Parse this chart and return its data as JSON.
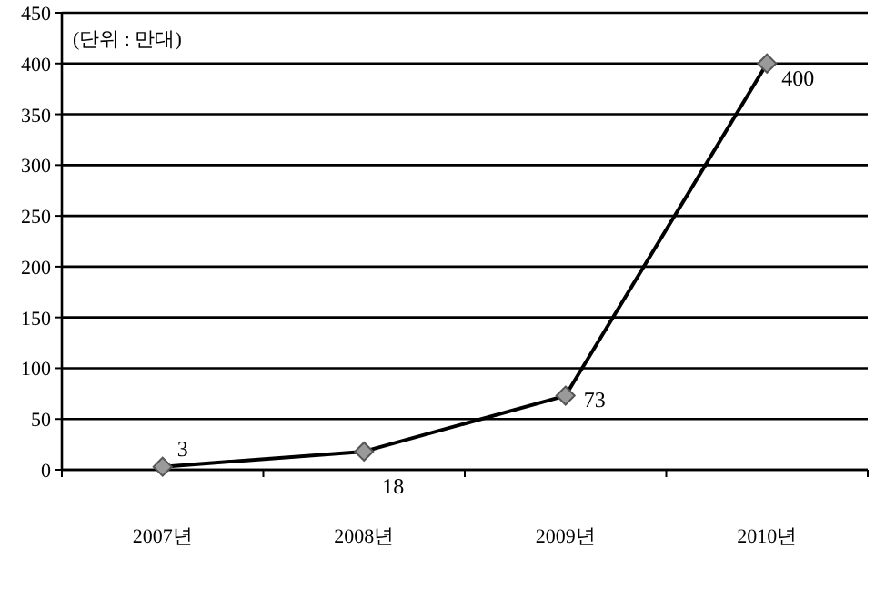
{
  "chart_data": {
    "type": "line",
    "categories": [
      "2007년",
      "2008년",
      "2009년",
      "2010년"
    ],
    "values": [
      3,
      18,
      73,
      400
    ],
    "color": "#000000",
    "ylim": [
      0,
      450
    ],
    "yticks": [
      0,
      50,
      100,
      150,
      200,
      250,
      300,
      350,
      400,
      450
    ],
    "grid": "y",
    "marker": "diamond",
    "data_labels": true,
    "annotations": [
      "(단위 : 만대)"
    ]
  }
}
